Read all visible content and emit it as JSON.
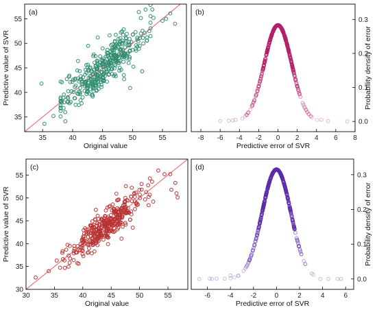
{
  "chart_data": [
    {
      "id": "a",
      "type": "scatter",
      "panel_label": "(a)",
      "xlabel": "Original value",
      "ylabel": "Predictive value of SVR",
      "xlim": [
        32,
        59
      ],
      "ylim": [
        32,
        58
      ],
      "xticks": [
        35,
        40,
        45,
        50,
        55
      ],
      "yticks": [
        35,
        40,
        45,
        50,
        55
      ],
      "y_axis_side": "left",
      "diagonal_line": true,
      "marker": "open-circle",
      "color": "#2e8b6e",
      "line_color": "#e88080",
      "trend": {
        "center_x": 45,
        "spread_x": 4.2,
        "noise_y": 2.0,
        "n": 360
      },
      "points": [
        [
          34.8,
          41.8
        ],
        [
          35.3,
          33.6
        ],
        [
          36.8,
          35.2
        ],
        [
          38.0,
          42.2
        ],
        [
          38.5,
          36.8
        ],
        [
          39.4,
          43.2
        ],
        [
          53.3,
          56.9
        ],
        [
          53.5,
          55.2
        ],
        [
          55.0,
          54.6
        ],
        [
          55.6,
          55.0
        ],
        [
          56.3,
          56.1
        ],
        [
          57.1,
          54.0
        ],
        [
          52.8,
          52.5
        ],
        [
          51.2,
          49.5
        ],
        [
          50.5,
          52.3
        ],
        [
          49.6,
          40.9
        ],
        [
          51.6,
          44.3
        ],
        [
          48.6,
          42.7
        ],
        [
          44.2,
          51.2
        ],
        [
          42.6,
          49.5
        ],
        [
          40.9,
          46.4
        ]
      ]
    },
    {
      "id": "b",
      "type": "scatter",
      "panel_label": "(b)",
      "xlabel": "Predictive error of SVR",
      "ylabel": "Probability density of error",
      "xlim": [
        -9,
        8
      ],
      "ylim": [
        -0.03,
        0.345
      ],
      "xticks": [
        -8,
        -6,
        -4,
        -2,
        0,
        2,
        4,
        6,
        8
      ],
      "yticks": [
        0.0,
        0.1,
        0.2,
        0.3
      ],
      "y_axis_side": "right",
      "marker": "open-circle",
      "color": "#b5206a",
      "density": {
        "peak": 0.283,
        "sigma": 1.41,
        "n": 360
      },
      "tail_points": [
        [
          -6.0,
          0.001
        ],
        [
          -5.1,
          0.002
        ],
        [
          -4.7,
          0.003
        ],
        [
          -4.4,
          0.005
        ],
        [
          4.5,
          0.005
        ],
        [
          5.2,
          0.001
        ],
        [
          7.2,
          0.0
        ]
      ]
    },
    {
      "id": "c",
      "type": "scatter",
      "panel_label": "(c)",
      "xlabel": "Original value",
      "ylabel": "Predictive value of SVR",
      "xlim": [
        30,
        58.5
      ],
      "ylim": [
        30,
        58.5
      ],
      "xticks": [
        30,
        35,
        40,
        45,
        50,
        55
      ],
      "yticks": [
        30,
        35,
        40,
        45,
        50,
        55
      ],
      "y_axis_side": "left",
      "diagonal_line": true,
      "marker": "open-circle",
      "color": "#b83232",
      "line_color": "#e88080",
      "trend": {
        "center_x": 44,
        "spread_x": 3.6,
        "noise_y": 1.7,
        "n": 360
      },
      "points": [
        [
          31.7,
          32.6
        ],
        [
          34.0,
          34.0
        ],
        [
          35.4,
          36.3
        ],
        [
          36.5,
          36.6
        ],
        [
          37.5,
          37.4
        ],
        [
          38.5,
          39.5
        ],
        [
          53.3,
          56.0
        ],
        [
          54.4,
          55.2
        ],
        [
          55.4,
          55.2
        ],
        [
          55.6,
          51.8
        ],
        [
          56.3,
          53.3
        ],
        [
          56.5,
          51.0
        ],
        [
          56.7,
          50.1
        ],
        [
          52.4,
          49.2
        ],
        [
          51.6,
          48.4
        ],
        [
          48.8,
          43.5
        ],
        [
          42.3,
          47.4
        ]
      ]
    },
    {
      "id": "d",
      "type": "scatter",
      "panel_label": "(d)",
      "xlabel": "Predictive error of SVR",
      "ylabel": "Probability density of error",
      "xlim": [
        -7.4,
        6.7
      ],
      "ylim": [
        -0.03,
        0.345
      ],
      "xticks": [
        -6,
        -4,
        -2,
        0,
        2,
        4,
        6
      ],
      "yticks": [
        0.0,
        0.1,
        0.2,
        0.3
      ],
      "y_axis_side": "right",
      "marker": "open-circle",
      "color": "#5c2ca8",
      "density": {
        "peak": 0.315,
        "sigma": 1.25,
        "n": 360
      },
      "tail_points": [
        [
          -6.7,
          0.0
        ],
        [
          -5.8,
          0.001
        ],
        [
          -5.6,
          0.0
        ],
        [
          -5.2,
          0.001
        ],
        [
          -4.5,
          0.001
        ],
        [
          -4.0,
          0.01
        ],
        [
          3.8,
          0.0
        ],
        [
          4.5,
          0.0
        ],
        [
          5.3,
          0.0
        ],
        [
          5.6,
          0.0
        ]
      ]
    }
  ]
}
